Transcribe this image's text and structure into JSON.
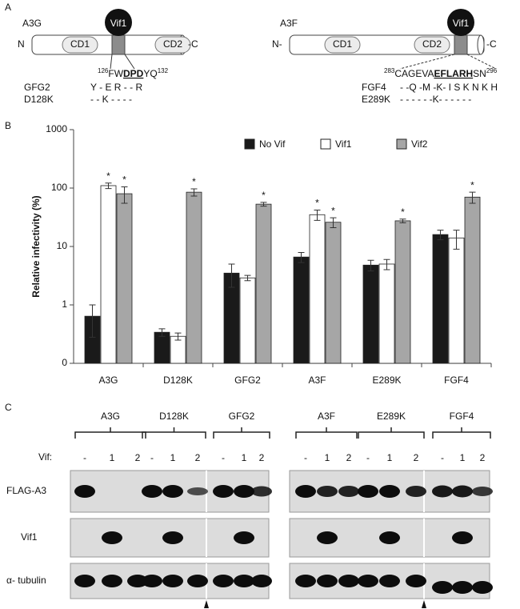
{
  "panel_a": {
    "label": "A",
    "left": {
      "protein": "A3G",
      "n_term": "N",
      "c_term": "-C",
      "domain1": "CD1",
      "domain2": "CD2",
      "vif": "Vif1",
      "sequence": {
        "start": "126",
        "pre": "FW",
        "bold": "DPD",
        "post": "YQ",
        "end": "132"
      },
      "mutants": [
        {
          "name": "GFG2",
          "residues": "Y - E R - - R"
        },
        {
          "name": "D128K",
          "residues": "- - K -  - - -"
        }
      ]
    },
    "right": {
      "protein": "A3F",
      "n_term": "N-",
      "c_term": "-C",
      "domain1": "CD1",
      "domain2": "CD2",
      "vif": "Vif1",
      "sequence": {
        "start": "283",
        "pre": "CAGEVA",
        "bold": "EFLARH",
        "post": "SN",
        "end": "296"
      },
      "mutants": [
        {
          "name": "FGF4",
          "residues": "- -Q -M -K- I S K N K H"
        },
        {
          "name": "E289K",
          "residues": "- - - - - -K- - - - - -"
        }
      ]
    }
  },
  "chart_data": {
    "type": "bar",
    "panel_label": "B",
    "y_label": "Relative infectivity (%)",
    "categories": [
      "A3G",
      "D128K",
      "GFG2",
      "A3F",
      "E289K",
      "FGF4"
    ],
    "series": [
      {
        "name": "No Vif",
        "color": "#1a1a1a",
        "values": [
          0.64,
          0.34,
          3.5,
          6.6,
          4.8,
          16
        ],
        "errors": [
          0.36,
          0.05,
          1.5,
          1.3,
          1.0,
          3
        ],
        "annotations": [
          null,
          null,
          null,
          null,
          null,
          null
        ]
      },
      {
        "name": "Vif1",
        "color": "#ffffff",
        "values": [
          110,
          0.29,
          2.9,
          35,
          5.0,
          14
        ],
        "errors": [
          12,
          0.04,
          0.3,
          7,
          1.0,
          5
        ],
        "annotations": [
          "*",
          null,
          null,
          "*",
          null,
          null
        ]
      },
      {
        "name": "Vif2",
        "color": "#a6a6a6",
        "values": [
          80,
          85,
          53,
          26,
          27.5,
          70
        ],
        "errors": [
          25,
          12,
          4,
          5,
          2,
          15
        ],
        "annotations": [
          "*",
          "*",
          "*",
          "*",
          "*",
          "*"
        ]
      }
    ],
    "ylim": [
      0.1,
      1000
    ],
    "yticks": [
      {
        "value": 0.1,
        "label": "0"
      },
      1,
      10,
      100,
      1000
    ],
    "log_scale": true,
    "grid": false,
    "legend": "top-right"
  },
  "panel_c": {
    "label": "C",
    "groups_left": [
      "A3G",
      "D128K",
      "GFG2"
    ],
    "groups_right": [
      "A3F",
      "E289K",
      "FGF4"
    ],
    "vif_label": "Vif:",
    "lanes": [
      "-",
      "1",
      "2"
    ],
    "rows": [
      "FLAG-A3",
      "Vif1",
      "α- tubulin"
    ]
  }
}
